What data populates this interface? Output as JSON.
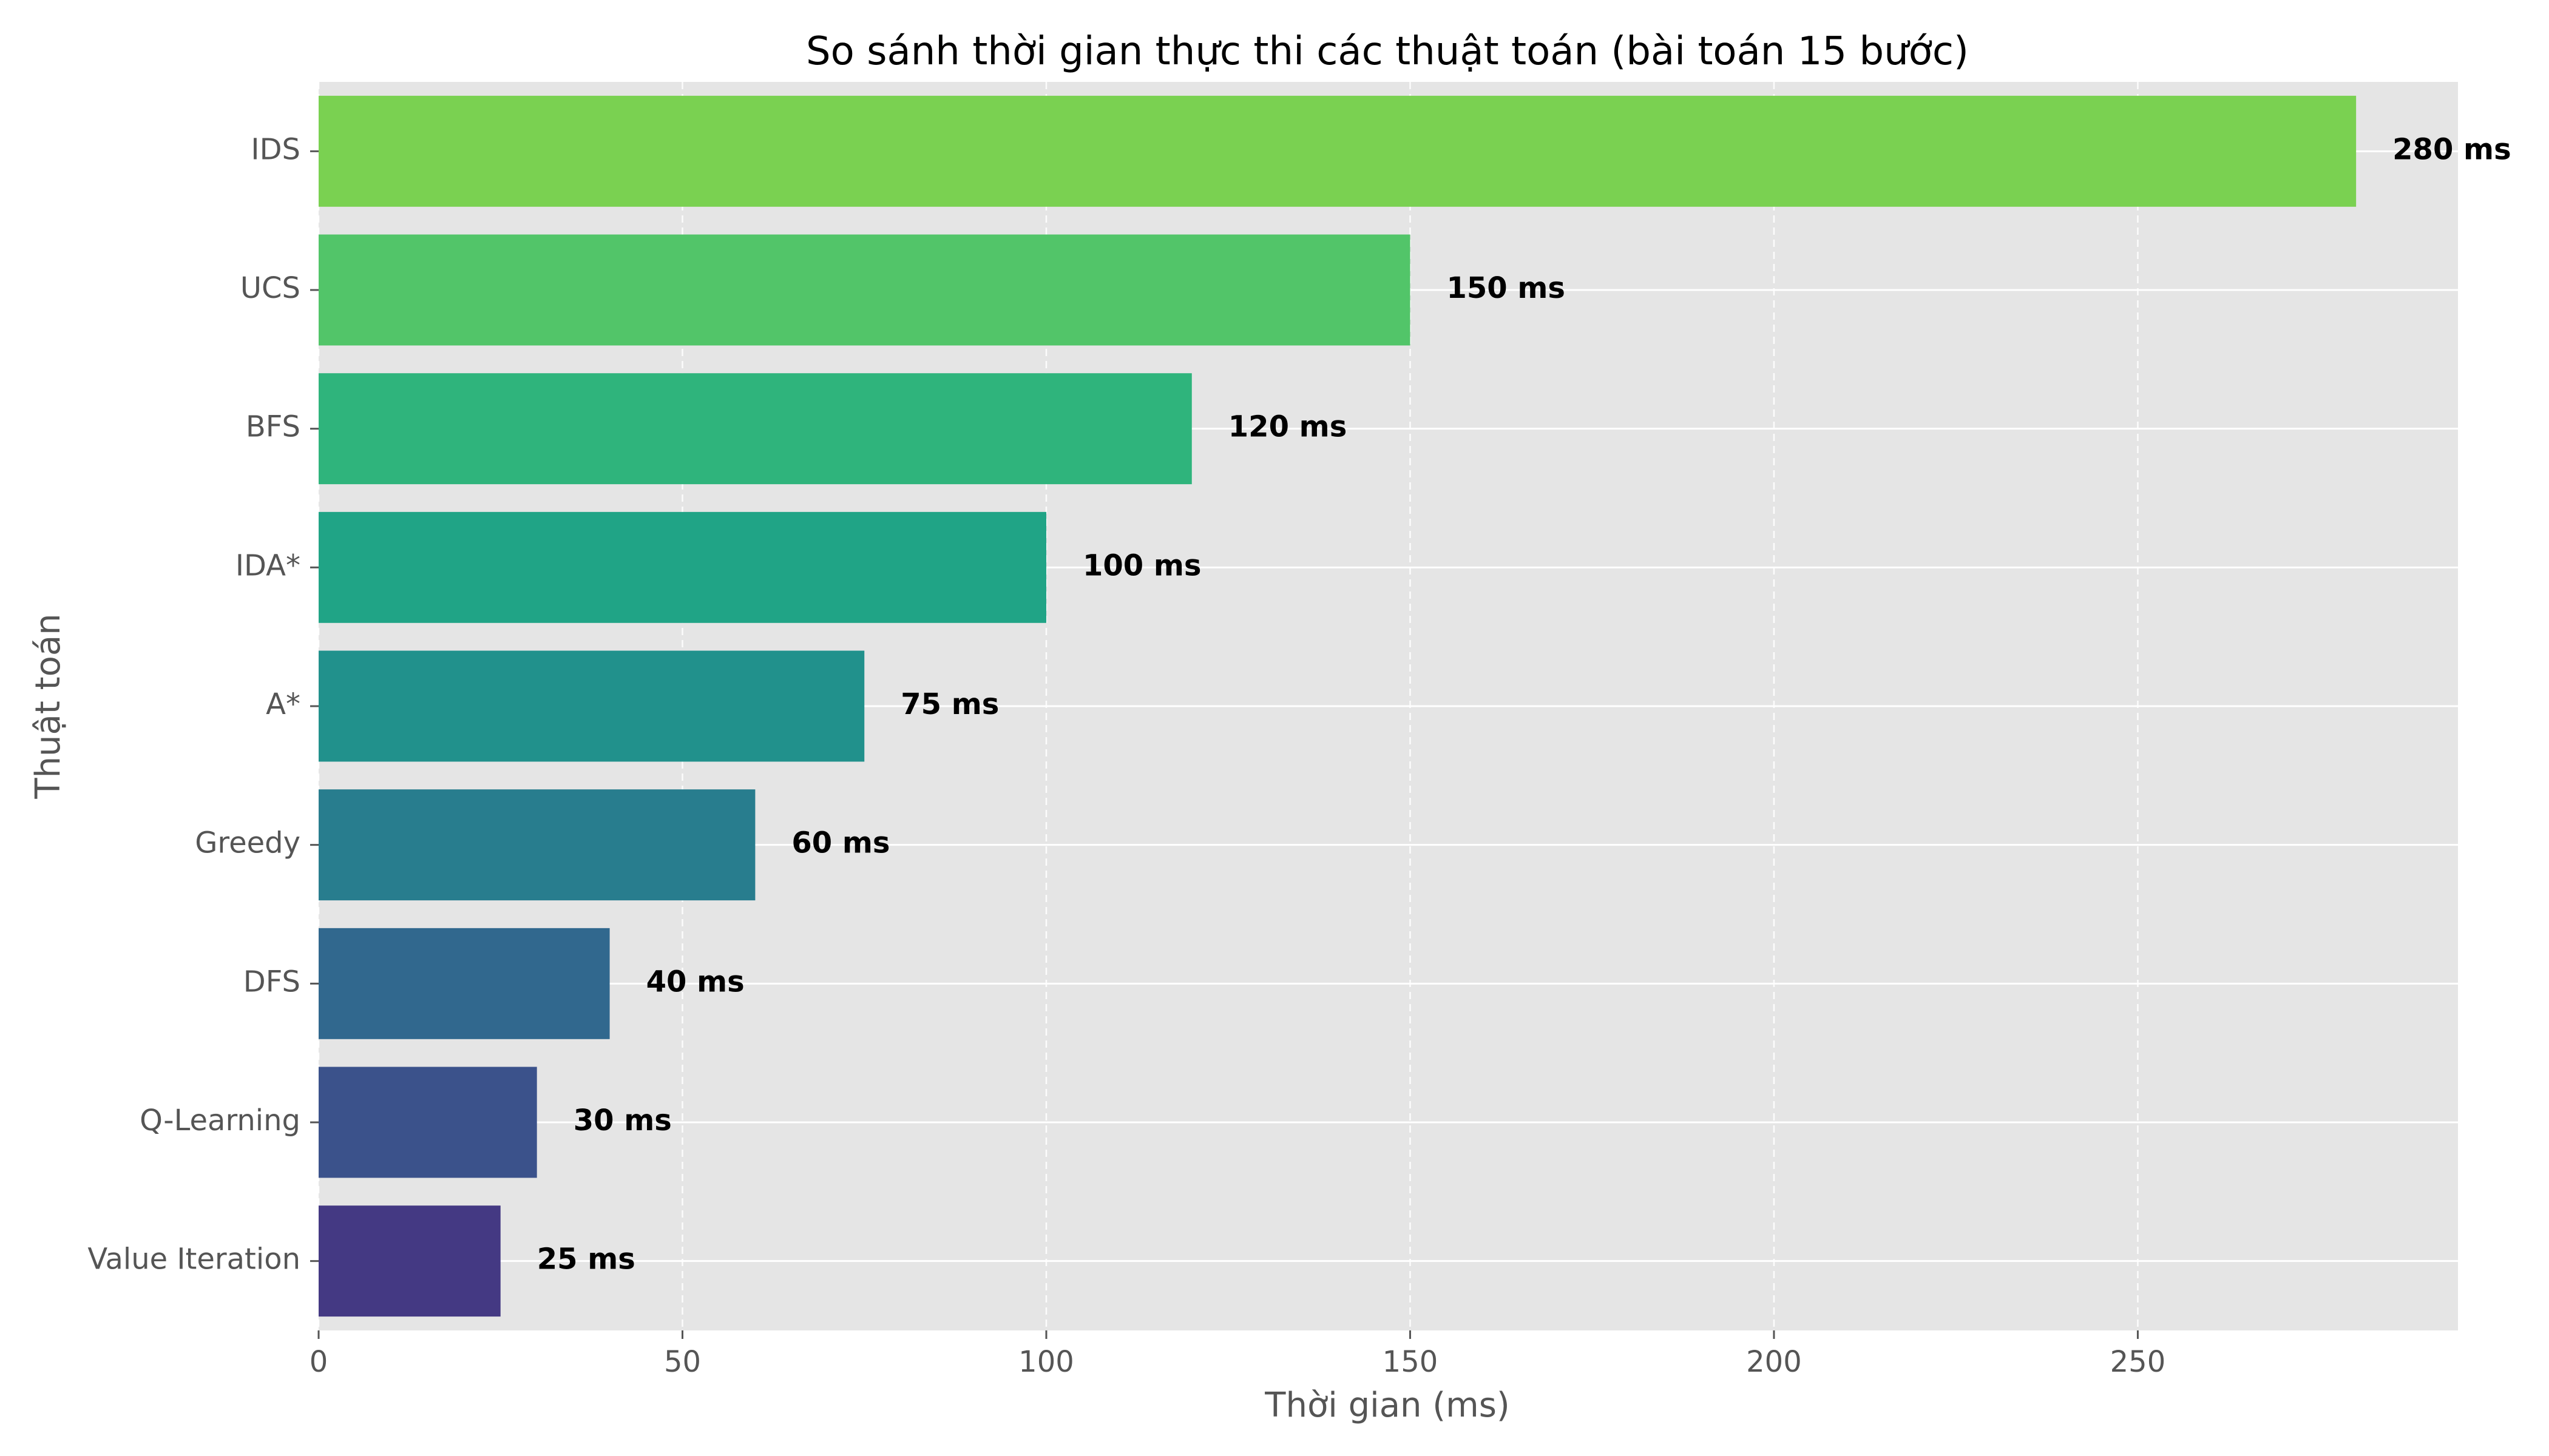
{
  "chart_data": {
    "type": "bar",
    "orientation": "horizontal",
    "title": "So sánh thời gian thực thi các thuật toán (bài toán 15 bước)",
    "xlabel": "Thời gian (ms)",
    "ylabel": "Thuật toán",
    "categories": [
      "IDS",
      "UCS",
      "BFS",
      "IDA*",
      "A*",
      "Greedy",
      "DFS",
      "Q-Learning",
      "Value Iteration"
    ],
    "values": [
      280,
      150,
      120,
      100,
      75,
      60,
      40,
      30,
      25
    ],
    "data_labels": [
      "280 ms",
      "150 ms",
      "120 ms",
      "100 ms",
      "75 ms",
      "60 ms",
      "40 ms",
      "30 ms",
      "25 ms"
    ],
    "colors": [
      "#7ad151",
      "#52c569",
      "#2fb47c",
      "#20a486",
      "#21918c",
      "#287d8e",
      "#31688e",
      "#3b528b",
      "#443983"
    ],
    "xlim": [
      0,
      294
    ],
    "xticks": [
      0,
      50,
      100,
      150,
      200,
      250
    ],
    "xtick_labels": [
      "0",
      "50",
      "100",
      "150",
      "200",
      "250"
    ],
    "grid": true,
    "background": "#e5e5e5"
  }
}
